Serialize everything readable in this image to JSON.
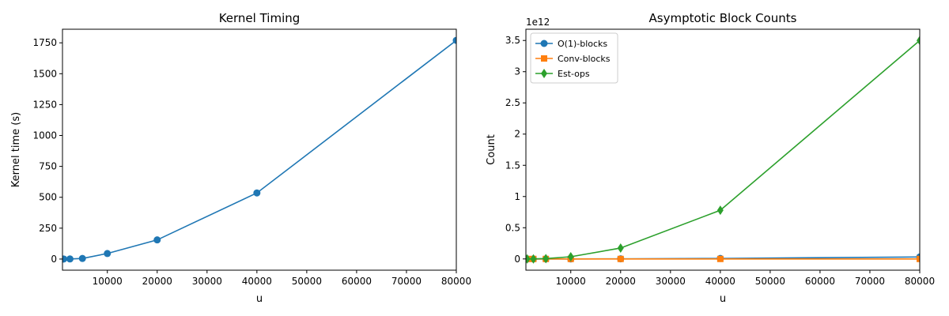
{
  "chart_data": [
    {
      "type": "line",
      "title": "Kernel Timing",
      "xlabel": "u",
      "ylabel": "Kernel time (s)",
      "xlim": [
        1000,
        80000
      ],
      "ylim": [
        -90,
        1860
      ],
      "xticks": [
        10000,
        20000,
        30000,
        40000,
        50000,
        60000,
        70000,
        80000
      ],
      "yticks": [
        0,
        250,
        500,
        750,
        1000,
        1250,
        1500,
        1750
      ],
      "grid": false,
      "series": [
        {
          "color": "#1f77b4",
          "marker": "circle",
          "x": [
            1250,
            2500,
            5000,
            10000,
            20000,
            40000,
            80000
          ],
          "y": [
            0.5,
            1,
            5,
            45,
            155,
            535,
            1770
          ]
        }
      ]
    },
    {
      "type": "line",
      "title": "Asymptotic Block Counts",
      "xlabel": "u",
      "ylabel": "Count",
      "offset_label": "1e12",
      "y_scale_factor": 1000000000000.0,
      "xlim": [
        1000,
        80000
      ],
      "ylim": [
        -0.18,
        3.68
      ],
      "xticks": [
        10000,
        20000,
        30000,
        40000,
        50000,
        60000,
        70000,
        80000
      ],
      "yticks": [
        0.0,
        0.5,
        1.0,
        1.5,
        2.0,
        2.5,
        3.0,
        3.5
      ],
      "grid": false,
      "legend": "upper-left",
      "series": [
        {
          "name": "O(1)-blocks",
          "color": "#1f77b4",
          "marker": "circle",
          "x": [
            1250,
            2500,
            5000,
            10000,
            20000,
            40000,
            80000
          ],
          "y": [
            0.0,
            0.0,
            0.0,
            0.0,
            0.002,
            0.008,
            0.032
          ]
        },
        {
          "name": "Conv-blocks",
          "color": "#ff7f0e",
          "marker": "square",
          "x": [
            1250,
            2500,
            5000,
            10000,
            20000,
            40000,
            80000
          ],
          "y": [
            0.0,
            0.0,
            0.0,
            0.0,
            0.0,
            0.0,
            0.0
          ]
        },
        {
          "name": "Est-ops",
          "color": "#2ca02c",
          "marker": "diamond",
          "x": [
            1250,
            2500,
            5000,
            10000,
            20000,
            40000,
            80000
          ],
          "y": [
            0.0,
            0.001,
            0.0055,
            0.035,
            0.175,
            0.78,
            3.5
          ]
        }
      ]
    }
  ]
}
